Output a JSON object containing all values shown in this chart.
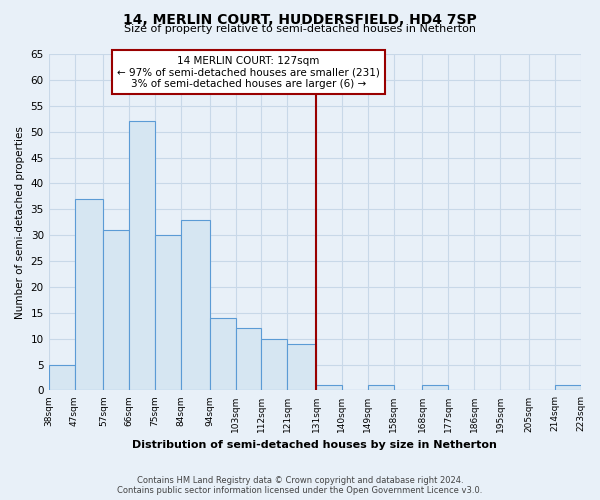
{
  "title": "14, MERLIN COURT, HUDDERSFIELD, HD4 7SP",
  "subtitle": "Size of property relative to semi-detached houses in Netherton",
  "xlabel": "Distribution of semi-detached houses by size in Netherton",
  "ylabel": "Number of semi-detached properties",
  "footer_line1": "Contains HM Land Registry data © Crown copyright and database right 2024.",
  "footer_line2": "Contains public sector information licensed under the Open Government Licence v3.0.",
  "bins": [
    38,
    47,
    57,
    66,
    75,
    84,
    94,
    103,
    112,
    121,
    131,
    140,
    149,
    158,
    168,
    177,
    186,
    195,
    205,
    214,
    223
  ],
  "counts": [
    5,
    37,
    31,
    52,
    30,
    33,
    14,
    12,
    10,
    9,
    1,
    0,
    1,
    0,
    1,
    0,
    0,
    0,
    0,
    1
  ],
  "bar_color": "#d6e6f2",
  "bar_edge_color": "#5b9bd5",
  "vline_x": 131,
  "vline_color": "#990000",
  "annotation_title": "14 MERLIN COURT: 127sqm",
  "annotation_line1": "← 97% of semi-detached houses are smaller (231)",
  "annotation_line2": "3% of semi-detached houses are larger (6) →",
  "annotation_box_color": "#ffffff",
  "annotation_box_edge_color": "#990000",
  "ylim": [
    0,
    65
  ],
  "yticks": [
    0,
    5,
    10,
    15,
    20,
    25,
    30,
    35,
    40,
    45,
    50,
    55,
    60,
    65
  ],
  "tick_labels": [
    "38sqm",
    "47sqm",
    "57sqm",
    "66sqm",
    "75sqm",
    "84sqm",
    "94sqm",
    "103sqm",
    "112sqm",
    "121sqm",
    "131sqm",
    "140sqm",
    "149sqm",
    "158sqm",
    "168sqm",
    "177sqm",
    "186sqm",
    "195sqm",
    "205sqm",
    "214sqm",
    "223sqm"
  ],
  "grid_color": "#c8d8e8",
  "bg_color": "#e8f0f8",
  "title_fontsize": 10,
  "subtitle_fontsize": 8,
  "xlabel_fontsize": 8,
  "ylabel_fontsize": 7.5,
  "tick_fontsize": 6.5,
  "ytick_fontsize": 7.5,
  "ann_fontsize": 7.5,
  "footer_fontsize": 6
}
